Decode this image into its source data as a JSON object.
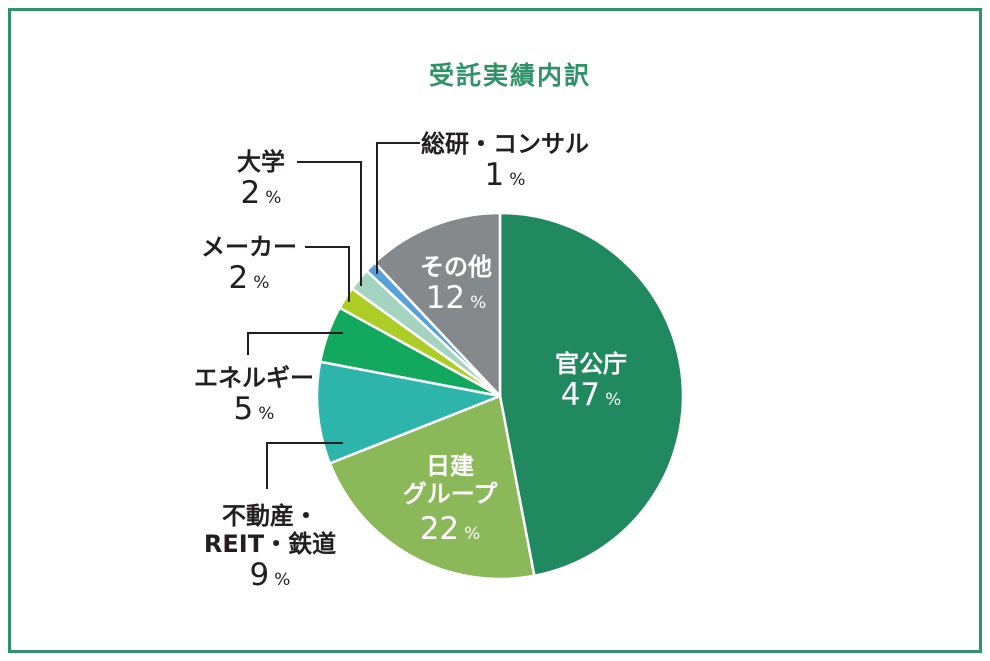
{
  "title": "受託実績内訳",
  "percent_sign": "%",
  "colors": {
    "frame_border_green": "#2f9268",
    "title_green": "#2f9268",
    "label_text_dark": "#231f20",
    "inside_label_white": "#ffffff",
    "slice_divider_white": "#ffffff"
  },
  "chart_data": {
    "type": "pie",
    "title": "受託実績内訳",
    "start_angle": "12-oclock, clockwise",
    "legend_position": "labels-on-chart",
    "categories": [
      "官公庁",
      "日建グループ",
      "不動産・REIT・鉄道",
      "エネルギー",
      "メーカー",
      "大学",
      "総研・コンサル",
      "その他"
    ],
    "values": [
      47,
      22,
      9,
      5,
      2,
      2,
      1,
      12
    ],
    "slices": [
      {
        "label": "官公庁",
        "pct": 47,
        "color": "#21895f",
        "label_lines": [
          "官公庁"
        ],
        "label_placement": "inside"
      },
      {
        "label": "日建グループ",
        "pct": 22,
        "color": "#8bb959",
        "label_lines": [
          "日建",
          "グループ"
        ],
        "label_placement": "inside"
      },
      {
        "label": "不動産・REIT・鉄道",
        "pct": 9,
        "color": "#2db4ab",
        "label_lines": [
          "不動産・",
          "REIT・鉄道"
        ],
        "label_placement": "outside-left-bottom"
      },
      {
        "label": "エネルギー",
        "pct": 5,
        "color": "#12a95f",
        "label_lines": [
          "エネルギー"
        ],
        "label_placement": "outside-left"
      },
      {
        "label": "メーカー",
        "pct": 2,
        "color": "#accd26",
        "label_lines": [
          "メーカー"
        ],
        "label_placement": "outside-left-top"
      },
      {
        "label": "大学",
        "pct": 2,
        "color": "#a4d4bf",
        "label_lines": [
          "大学"
        ],
        "label_placement": "outside-left-top"
      },
      {
        "label": "総研・コンサル",
        "pct": 1,
        "color": "#57a1da",
        "label_lines": [
          "総研・コンサル"
        ],
        "label_placement": "outside-top"
      },
      {
        "label": "その他",
        "pct": 12,
        "color": "#85898b",
        "label_lines": [
          "その他"
        ],
        "label_placement": "inside"
      }
    ]
  }
}
